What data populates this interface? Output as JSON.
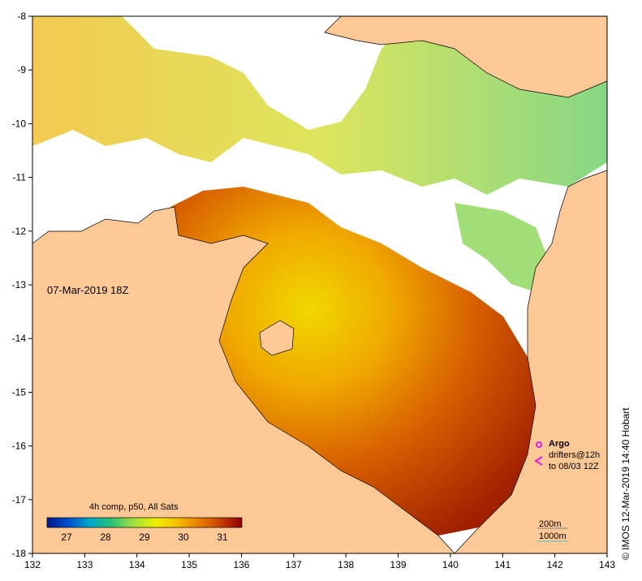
{
  "map": {
    "title_date": "07-Mar-2019 18Z",
    "composite_label": "4h comp, p50, All Sats",
    "credit": "©  IMOS 12-Mar-2019 14:40 Hobart",
    "longitude_ticks": [
      "132",
      "133",
      "134",
      "135",
      "136",
      "137",
      "138",
      "139",
      "140",
      "141",
      "142",
      "143"
    ],
    "latitude_ticks": [
      "-8",
      "-9",
      "-10",
      "-11",
      "-12",
      "-13",
      "-14",
      "-15",
      "-16",
      "-17",
      "-18"
    ]
  },
  "colorbar": {
    "ticks": [
      "27",
      "28",
      "29",
      "30",
      "31"
    ],
    "min": 26.5,
    "max": 31.5,
    "colors": [
      "#001a8c",
      "#0050d0",
      "#00a8c8",
      "#2cc070",
      "#a0e040",
      "#f0f000",
      "#f8c000",
      "#e88000",
      "#c84000",
      "#900000"
    ]
  },
  "legend": {
    "argo_label": "Argo",
    "drifters_label": "drifters@12h",
    "drifters_date": "to 08/03 12Z",
    "argo_color": "#e020e0",
    "depth_200m": "200m",
    "depth_1000m": "1000m"
  },
  "colors": {
    "land": "#fcc896",
    "ocean_no_data": "#ffffff"
  }
}
